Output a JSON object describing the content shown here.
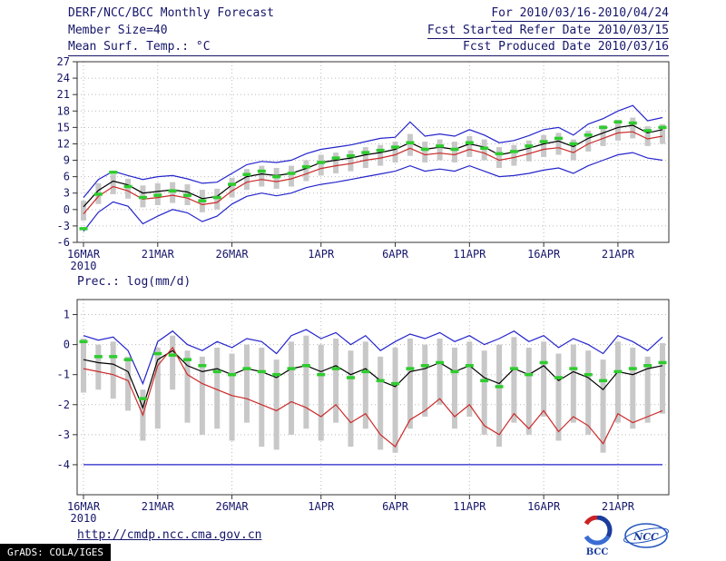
{
  "header": {
    "title": "DERF/NCC/BCC Monthly Forecast",
    "for_range": "For 2010/03/16-2010/04/24",
    "member_size": "Member Size=40",
    "refer_date": "Fcst Started Refer Date 2010/03/15",
    "temp_label": "Mean Surf. Temp.: °C",
    "produced_date": "Fcst Produced Date 2010/03/16"
  },
  "footer": {
    "url": "http://cmdp.ncc.cma.gov.cn",
    "grads_credit": "GrADS: COLA/IGES",
    "logos": [
      {
        "label": "BCC"
      },
      {
        "label": "NCC"
      }
    ]
  },
  "colors": {
    "blue": "#2424cc",
    "red": "#cc2a2a",
    "black": "#000000",
    "green": "#2ecc2e",
    "bar": "#c8c8c8",
    "text": "#15156a"
  },
  "chart_data": [
    {
      "type": "line",
      "name": "temperature",
      "title": "Mean Surf. Temp.: °C",
      "ylabel": "°C",
      "xlabel": "",
      "n_days": 40,
      "x_tick_labels": [
        "16MAR",
        "21MAR",
        "26MAR",
        "1APR",
        "6APR",
        "11APR",
        "16APR",
        "21APR"
      ],
      "x_tick_days": [
        0,
        5,
        10,
        16,
        21,
        26,
        31,
        36
      ],
      "x_year_label": "2010",
      "ylim": [
        -6,
        27
      ],
      "yticks": [
        -6,
        -3,
        0,
        3,
        6,
        9,
        12,
        15,
        18,
        21,
        24,
        27
      ],
      "grid": true,
      "series": [
        {
          "name": "upper-bound-blue",
          "color": "blue",
          "values": [
            2.2,
            5.5,
            7.0,
            6.2,
            5.5,
            6.0,
            6.2,
            5.6,
            4.8,
            5.0,
            6.6,
            8.2,
            8.8,
            8.6,
            9.0,
            10.2,
            11.0,
            11.4,
            11.8,
            12.4,
            13.0,
            13.2,
            16.0,
            13.4,
            13.8,
            13.4,
            14.6,
            13.6,
            12.2,
            12.6,
            13.5,
            14.6,
            15.0,
            13.6,
            15.6,
            16.6,
            18.0,
            19.0,
            16.2,
            16.8
          ]
        },
        {
          "name": "ensemble-mean-black",
          "color": "black",
          "values": [
            0.5,
            3.5,
            5.2,
            4.5,
            3.0,
            3.3,
            3.6,
            3.2,
            2.0,
            2.4,
            4.5,
            6.0,
            6.5,
            6.2,
            6.6,
            7.5,
            8.6,
            9.0,
            9.4,
            10.0,
            10.4,
            11.0,
            12.2,
            11.0,
            11.4,
            11.0,
            12.0,
            11.4,
            10.0,
            10.5,
            11.2,
            12.0,
            12.5,
            11.5,
            13.0,
            14.0,
            15.0,
            15.4,
            14.0,
            14.6
          ]
        },
        {
          "name": "red-line",
          "color": "red",
          "values": [
            -0.8,
            2.4,
            4.2,
            3.4,
            1.9,
            2.2,
            2.6,
            2.1,
            0.9,
            1.3,
            3.4,
            5.0,
            5.5,
            5.1,
            5.6,
            6.5,
            7.5,
            8.0,
            8.4,
            9.0,
            9.4,
            10.0,
            11.2,
            10.0,
            10.3,
            10.0,
            11.0,
            10.3,
            9.0,
            9.5,
            10.2,
            11.0,
            11.3,
            10.4,
            12.0,
            13.0,
            14.0,
            14.2,
            12.9,
            13.4
          ]
        },
        {
          "name": "lower-bound-blue",
          "color": "blue",
          "values": [
            -4.0,
            -0.5,
            1.4,
            0.6,
            -2.6,
            -1.2,
            0.0,
            -0.6,
            -2.2,
            -1.2,
            1.0,
            2.4,
            3.0,
            2.5,
            3.0,
            4.0,
            4.6,
            5.0,
            5.5,
            6.0,
            6.5,
            7.0,
            8.0,
            7.0,
            7.4,
            7.0,
            8.0,
            7.0,
            6.0,
            6.2,
            6.6,
            7.2,
            7.6,
            6.6,
            8.0,
            9.0,
            10.0,
            10.4,
            9.4,
            9.0
          ]
        }
      ],
      "obs_dashes": {
        "name": "green-dash-markers",
        "color": "green",
        "values": [
          -3.5,
          2.8,
          6.8,
          4.2,
          2.2,
          2.6,
          3.4,
          2.6,
          1.6,
          2.2,
          4.6,
          6.4,
          7.0,
          6.0,
          6.6,
          7.8,
          8.6,
          9.4,
          9.8,
          10.4,
          10.8,
          11.4,
          12.2,
          11.0,
          11.6,
          11.0,
          12.2,
          11.2,
          10.2,
          10.6,
          11.6,
          12.4,
          13.0,
          12.0,
          13.6,
          15.0,
          16.0,
          15.8,
          14.4,
          15.0
        ]
      },
      "spread_bars": {
        "low": [
          -2.0,
          1.0,
          2.8,
          2.0,
          0.4,
          0.8,
          1.2,
          0.8,
          -0.5,
          0.0,
          2.2,
          3.6,
          4.2,
          3.8,
          4.2,
          5.2,
          6.2,
          6.6,
          7.0,
          7.6,
          8.0,
          8.6,
          9.8,
          8.6,
          9.0,
          8.6,
          9.6,
          9.0,
          7.6,
          8.0,
          8.8,
          9.6,
          10.0,
          9.0,
          10.6,
          11.6,
          12.6,
          13.0,
          11.6,
          12.0
        ],
        "high": [
          1.6,
          4.8,
          6.4,
          5.6,
          4.4,
          4.8,
          5.0,
          4.6,
          3.6,
          3.8,
          5.8,
          7.4,
          8.0,
          7.6,
          8.0,
          9.0,
          10.0,
          10.4,
          10.8,
          11.4,
          11.8,
          12.4,
          13.8,
          12.4,
          12.8,
          12.4,
          13.4,
          12.8,
          11.4,
          11.8,
          12.6,
          13.6,
          14.0,
          12.8,
          14.4,
          15.4,
          16.4,
          16.8,
          15.2,
          15.6
        ]
      }
    },
    {
      "type": "line",
      "name": "precipitation",
      "title": "Prec.: log(mm/d)",
      "ylabel": "log(mm/d)",
      "xlabel": "",
      "n_days": 40,
      "x_tick_labels": [
        "16MAR",
        "21MAR",
        "26MAR",
        "1APR",
        "6APR",
        "11APR",
        "16APR",
        "21APR"
      ],
      "x_tick_days": [
        0,
        5,
        10,
        16,
        21,
        26,
        31,
        36
      ],
      "x_year_label": "2010",
      "ylim": [
        -5,
        1.5
      ],
      "yticks": [
        -4,
        -3,
        -2,
        -1,
        0,
        1
      ],
      "grid": true,
      "series": [
        {
          "name": "upper-bound-blue",
          "color": "blue",
          "values": [
            0.3,
            0.15,
            0.25,
            -0.2,
            -1.3,
            0.1,
            0.45,
            0.0,
            -0.2,
            0.1,
            -0.1,
            0.2,
            0.1,
            -0.3,
            0.3,
            0.5,
            0.2,
            0.4,
            0.0,
            0.3,
            -0.2,
            0.1,
            0.35,
            0.2,
            0.4,
            0.1,
            0.3,
            0.0,
            0.2,
            0.45,
            0.1,
            0.3,
            -0.1,
            0.2,
            0.0,
            -0.3,
            0.3,
            0.1,
            -0.2,
            0.25
          ]
        },
        {
          "name": "ensemble-mean-black",
          "color": "black",
          "values": [
            -0.5,
            -0.6,
            -0.65,
            -0.9,
            -2.1,
            -0.5,
            -0.2,
            -0.7,
            -0.9,
            -0.8,
            -1.0,
            -0.8,
            -0.9,
            -1.1,
            -0.8,
            -0.7,
            -0.9,
            -0.7,
            -1.0,
            -0.8,
            -1.2,
            -1.4,
            -0.9,
            -0.8,
            -0.6,
            -0.9,
            -0.7,
            -1.1,
            -1.3,
            -0.8,
            -1.0,
            -0.7,
            -1.2,
            -0.9,
            -1.1,
            -1.5,
            -0.9,
            -1.0,
            -0.8,
            -0.7
          ]
        },
        {
          "name": "red-line",
          "color": "red",
          "values": [
            -0.8,
            -0.9,
            -1.0,
            -1.2,
            -2.35,
            -0.7,
            -0.1,
            -1.0,
            -1.3,
            -1.5,
            -1.7,
            -1.8,
            -2.0,
            -2.2,
            -1.9,
            -2.1,
            -2.4,
            -2.0,
            -2.6,
            -2.3,
            -3.0,
            -3.4,
            -2.5,
            -2.2,
            -1.8,
            -2.4,
            -2.0,
            -2.7,
            -3.0,
            -2.3,
            -2.8,
            -2.2,
            -2.9,
            -2.4,
            -2.7,
            -3.3,
            -2.3,
            -2.6,
            -2.4,
            -2.2
          ]
        },
        {
          "name": "lower-bound-blue-floor",
          "color": "blue",
          "values": [
            -4,
            -4,
            -4,
            -4,
            -4,
            -4,
            -4,
            -4,
            -4,
            -4,
            -4,
            -4,
            -4,
            -4,
            -4,
            -4,
            -4,
            -4,
            -4,
            -4,
            -4,
            -4,
            -4,
            -4,
            -4,
            -4,
            -4,
            -4,
            -4,
            -4,
            -4,
            -4,
            -4,
            -4,
            -4,
            -4,
            -4,
            -4,
            -4,
            -4
          ]
        }
      ],
      "obs_dashes": {
        "name": "green-dash-markers",
        "color": "green",
        "values": [
          0.1,
          -0.4,
          -0.4,
          -0.5,
          -1.8,
          -0.3,
          -0.35,
          -0.5,
          -0.7,
          -0.9,
          -1.0,
          -0.8,
          -0.9,
          -1.0,
          -0.8,
          -0.7,
          -1.0,
          -0.8,
          -1.1,
          -0.9,
          -1.2,
          -1.3,
          -0.8,
          -0.7,
          -0.6,
          -0.9,
          -0.7,
          -1.2,
          -1.4,
          -0.8,
          -1.0,
          -0.6,
          -1.1,
          -0.8,
          -1.0,
          -1.2,
          -0.9,
          -0.8,
          -0.7,
          -0.6
        ]
      },
      "spread_bars": {
        "low": [
          -1.6,
          -1.5,
          -1.8,
          -2.2,
          -3.2,
          -2.8,
          -1.5,
          -2.6,
          -3.0,
          -2.8,
          -3.2,
          -2.6,
          -3.4,
          -3.5,
          -3.0,
          -2.8,
          -3.2,
          -2.6,
          -3.4,
          -2.8,
          -3.5,
          -3.6,
          -2.8,
          -2.4,
          -2.0,
          -2.8,
          -2.4,
          -3.0,
          -3.4,
          -2.6,
          -3.0,
          -2.4,
          -3.2,
          -2.6,
          -3.0,
          -3.6,
          -2.6,
          -2.8,
          -2.6,
          -2.3
        ],
        "high": [
          0.2,
          0.0,
          0.1,
          -0.4,
          -1.5,
          -0.1,
          0.3,
          -0.2,
          -0.4,
          -0.1,
          -0.3,
          0.0,
          -0.1,
          -0.5,
          0.1,
          0.3,
          0.0,
          0.2,
          -0.2,
          0.1,
          -0.4,
          -0.1,
          0.2,
          0.0,
          0.2,
          -0.1,
          0.1,
          -0.2,
          0.0,
          0.25,
          -0.1,
          0.1,
          -0.3,
          0.0,
          -0.2,
          -0.5,
          0.1,
          -0.1,
          -0.4,
          0.05
        ]
      }
    }
  ]
}
